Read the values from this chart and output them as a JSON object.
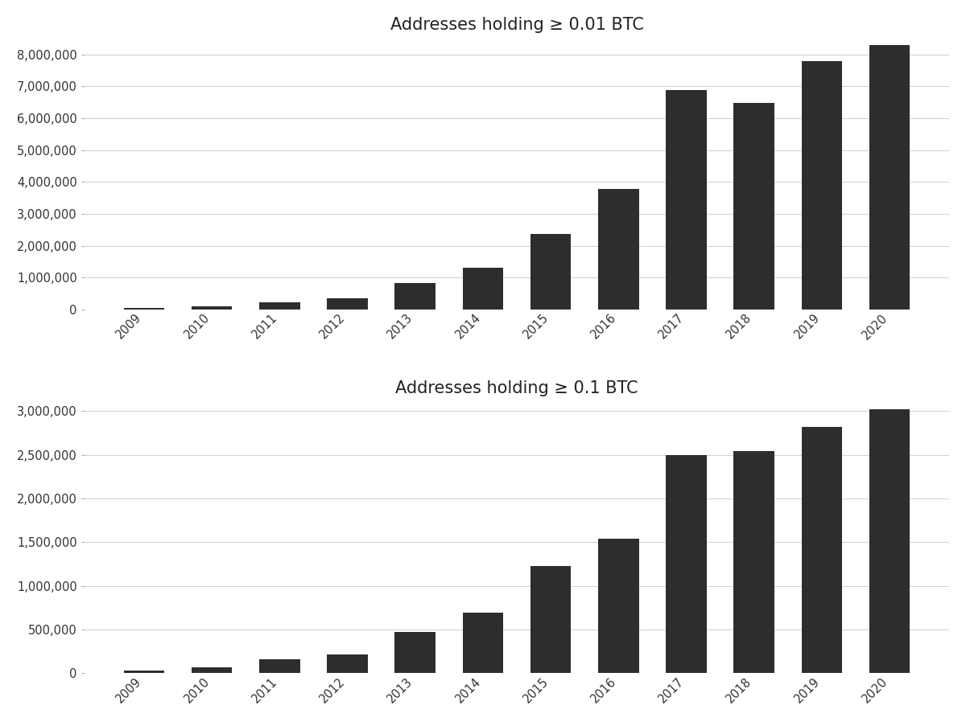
{
  "years": [
    "2009",
    "2010",
    "2011",
    "2012",
    "2013",
    "2014",
    "2015",
    "2016",
    "2017",
    "2018",
    "2019",
    "2020"
  ],
  "values_001": [
    50000,
    100000,
    230000,
    350000,
    820000,
    1300000,
    2370000,
    3780000,
    6880000,
    6480000,
    7800000,
    8300000
  ],
  "values_01": [
    30000,
    70000,
    155000,
    215000,
    470000,
    690000,
    1230000,
    1540000,
    2500000,
    2540000,
    2820000,
    3020000
  ],
  "title1": "Addresses holding ≥ 0.01 BTC",
  "title2": "Addresses holding ≥ 0.1 BTC",
  "bar_color": "#2d2d2d",
  "bg_color": "#ffffff",
  "grid_color": "#d0d0d0",
  "title_fontsize": 15,
  "tick_fontsize": 10.5
}
